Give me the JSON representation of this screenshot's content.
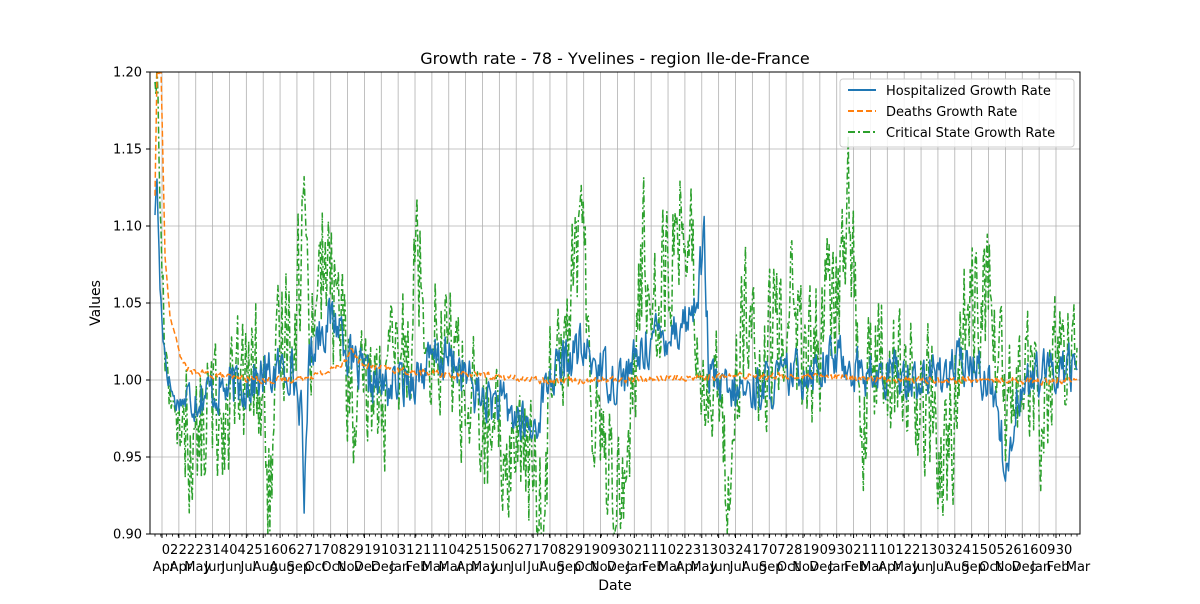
{
  "chart_data": {
    "type": "line",
    "title": "Growth rate - 78 - Yvelines - region Ile-de-France",
    "xlabel": "Date",
    "ylabel": "Values",
    "ylim": [
      0.9,
      1.2
    ],
    "yticks": [
      "0.90",
      "0.95",
      "1.00",
      "1.05",
      "1.10",
      "1.15",
      "1.20"
    ],
    "xticks": [
      {
        "day": "02",
        "month": "Apr"
      },
      {
        "day": "22",
        "month": "Apr"
      },
      {
        "day": "23",
        "month": "May"
      },
      {
        "day": "14",
        "month": "Jun"
      },
      {
        "day": "04",
        "month": "Jun"
      },
      {
        "day": "25",
        "month": "Jul"
      },
      {
        "day": "16",
        "month": "Aug"
      },
      {
        "day": "06",
        "month": "Aug"
      },
      {
        "day": "27",
        "month": "Sep"
      },
      {
        "day": "17",
        "month": "Oct"
      },
      {
        "day": "08",
        "month": "Oct"
      },
      {
        "day": "29",
        "month": "Nov"
      },
      {
        "day": "19",
        "month": "Dec"
      },
      {
        "day": "10",
        "month": "Dec"
      },
      {
        "day": "31",
        "month": "Jan"
      },
      {
        "day": "21",
        "month": "Feb"
      },
      {
        "day": "11",
        "month": "Mar"
      },
      {
        "day": "04",
        "month": "Mar"
      },
      {
        "day": "25",
        "month": "Apr"
      },
      {
        "day": "15",
        "month": "May"
      },
      {
        "day": "06",
        "month": "Jun"
      },
      {
        "day": "27",
        "month": "Jul"
      },
      {
        "day": "17",
        "month": "Jul"
      },
      {
        "day": "08",
        "month": "Aug"
      },
      {
        "day": "29",
        "month": "Sep"
      },
      {
        "day": "19",
        "month": "Oct"
      },
      {
        "day": "09",
        "month": "Nov"
      },
      {
        "day": "30",
        "month": "Dec"
      },
      {
        "day": "21",
        "month": "Jan"
      },
      {
        "day": "11",
        "month": "Feb"
      },
      {
        "day": "02",
        "month": "Mar"
      },
      {
        "day": "23",
        "month": "Apr"
      },
      {
        "day": "13",
        "month": "May"
      },
      {
        "day": "03",
        "month": "Jun"
      },
      {
        "day": "24",
        "month": "Jul"
      },
      {
        "day": "17",
        "month": "Aug"
      },
      {
        "day": "07",
        "month": "Sep"
      },
      {
        "day": "28",
        "month": "Oct"
      },
      {
        "day": "19",
        "month": "Nov"
      },
      {
        "day": "09",
        "month": "Dec"
      },
      {
        "day": "30",
        "month": "Jan"
      },
      {
        "day": "21",
        "month": "Feb"
      },
      {
        "day": "11",
        "month": "Mar"
      },
      {
        "day": "01",
        "month": "Apr"
      },
      {
        "day": "22",
        "month": "May"
      },
      {
        "day": "13",
        "month": "Jun"
      },
      {
        "day": "03",
        "month": "Jul"
      },
      {
        "day": "24",
        "month": "Aug"
      },
      {
        "day": "15",
        "month": "Sep"
      },
      {
        "day": "05",
        "month": "Oct"
      },
      {
        "day": "26",
        "month": "Nov"
      },
      {
        "day": "16",
        "month": "Dec"
      },
      {
        "day": "09",
        "month": "Jan"
      },
      {
        "day": "30",
        "month": "Feb"
      }
    ],
    "xticks_trailing": "Mar",
    "legend_position": "top-right",
    "grid": true,
    "series": [
      {
        "name": "Hospitalized Growth Rate",
        "color": "#1f77b4",
        "style": "solid",
        "anchors": [
          [
            0,
            1.11
          ],
          [
            2,
            1.13
          ],
          [
            5,
            1.06
          ],
          [
            8,
            1.03
          ],
          [
            12,
            1.005
          ],
          [
            20,
            0.985
          ],
          [
            40,
            0.99
          ],
          [
            60,
            0.993
          ],
          [
            80,
            0.995
          ],
          [
            100,
            1.0
          ],
          [
            120,
            1.005
          ],
          [
            135,
            1.01
          ],
          [
            145,
            0.98
          ],
          [
            148,
            0.915
          ],
          [
            152,
            1.01
          ],
          [
            160,
            1.03
          ],
          [
            175,
            1.04
          ],
          [
            185,
            1.035
          ],
          [
            195,
            1.01
          ],
          [
            210,
            1.0
          ],
          [
            230,
            0.995
          ],
          [
            250,
            1.0
          ],
          [
            265,
            1.005
          ],
          [
            280,
            1.015
          ],
          [
            300,
            1.01
          ],
          [
            320,
            0.99
          ],
          [
            340,
            0.985
          ],
          [
            360,
            0.975
          ],
          [
            375,
            0.965
          ],
          [
            390,
            1.0
          ],
          [
            405,
            1.01
          ],
          [
            420,
            1.02
          ],
          [
            440,
            1.01
          ],
          [
            455,
            1.0
          ],
          [
            470,
            1.005
          ],
          [
            490,
            1.025
          ],
          [
            505,
            1.03
          ],
          [
            520,
            1.035
          ],
          [
            535,
            1.045
          ],
          [
            545,
            1.09
          ],
          [
            550,
            1.0
          ],
          [
            570,
            0.99
          ],
          [
            600,
            0.995
          ],
          [
            620,
            1.0
          ],
          [
            640,
            1.005
          ],
          [
            660,
            1.01
          ],
          [
            680,
            1.015
          ],
          [
            700,
            1.005
          ],
          [
            720,
            1.0
          ],
          [
            740,
            1.005
          ],
          [
            760,
            1.0
          ],
          [
            780,
            1.005
          ],
          [
            800,
            1.01
          ],
          [
            820,
            1.005
          ],
          [
            835,
            0.99
          ],
          [
            845,
            0.935
          ],
          [
            855,
            0.99
          ],
          [
            870,
            1.0
          ],
          [
            890,
            1.005
          ],
          [
            905,
            1.01
          ],
          [
            915,
            1.005
          ]
        ],
        "noise": 0.014
      },
      {
        "name": "Deaths Growth Rate",
        "color": "#ff7f0e",
        "style": "dashed",
        "anchors": [
          [
            0,
            1.12
          ],
          [
            2,
            1.2
          ],
          [
            6,
            1.2
          ],
          [
            10,
            1.08
          ],
          [
            15,
            1.04
          ],
          [
            20,
            1.03
          ],
          [
            25,
            1.015
          ],
          [
            35,
            1.005
          ],
          [
            50,
            1.004
          ],
          [
            70,
            1.002
          ],
          [
            90,
            1.001
          ],
          [
            110,
            1.0
          ],
          [
            130,
            1.0
          ],
          [
            150,
            1.002
          ],
          [
            170,
            1.005
          ],
          [
            185,
            1.01
          ],
          [
            195,
            1.02
          ],
          [
            205,
            1.01
          ],
          [
            220,
            1.008
          ],
          [
            240,
            1.006
          ],
          [
            260,
            1.005
          ],
          [
            280,
            1.004
          ],
          [
            300,
            1.003
          ],
          [
            320,
            1.004
          ],
          [
            340,
            1.002
          ],
          [
            360,
            1.001
          ],
          [
            380,
            1.0
          ],
          [
            400,
            1.0
          ],
          [
            450,
            1.0
          ],
          [
            500,
            1.001
          ],
          [
            550,
            1.002
          ],
          [
            600,
            1.003
          ],
          [
            650,
            1.002
          ],
          [
            700,
            1.001
          ],
          [
            750,
            1.0
          ],
          [
            800,
            1.0
          ],
          [
            850,
            1.0
          ],
          [
            880,
            0.999
          ],
          [
            900,
            1.0
          ],
          [
            915,
            1.0
          ]
        ],
        "noise": 0.002
      },
      {
        "name": "Critical State Growth Rate",
        "color": "#2ca02c",
        "style": "dashdot",
        "anchors": [
          [
            0,
            1.2
          ],
          [
            2,
            1.2
          ],
          [
            6,
            1.09
          ],
          [
            10,
            1.02
          ],
          [
            15,
            1.0
          ],
          [
            20,
            0.96
          ],
          [
            30,
            0.98
          ],
          [
            40,
            0.95
          ],
          [
            50,
            0.975
          ],
          [
            70,
            0.985
          ],
          [
            90,
            0.99
          ],
          [
            100,
            1.01
          ],
          [
            110,
            0.96
          ],
          [
            115,
            0.92
          ],
          [
            125,
            1.03
          ],
          [
            140,
            1.05
          ],
          [
            148,
            1.11
          ],
          [
            155,
            1.04
          ],
          [
            165,
            1.08
          ],
          [
            175,
            1.06
          ],
          [
            185,
            1.04
          ],
          [
            200,
            0.96
          ],
          [
            215,
            1.0
          ],
          [
            230,
            0.99
          ],
          [
            250,
            1.02
          ],
          [
            260,
            1.09
          ],
          [
            270,
            1.04
          ],
          [
            285,
            1.03
          ],
          [
            300,
            1.01
          ],
          [
            320,
            0.97
          ],
          [
            340,
            0.95
          ],
          [
            360,
            0.96
          ],
          [
            375,
            0.94
          ],
          [
            385,
            0.905
          ],
          [
            395,
            1.05
          ],
          [
            410,
            1.03
          ],
          [
            420,
            1.1
          ],
          [
            435,
            1.0
          ],
          [
            450,
            0.95
          ],
          [
            465,
            0.93
          ],
          [
            475,
            1.0
          ],
          [
            485,
            1.08
          ],
          [
            500,
            1.06
          ],
          [
            515,
            1.08
          ],
          [
            525,
            1.12
          ],
          [
            540,
            1.02
          ],
          [
            555,
            0.99
          ],
          [
            570,
            0.95
          ],
          [
            585,
            1.05
          ],
          [
            600,
            0.98
          ],
          [
            615,
            1.03
          ],
          [
            630,
            1.06
          ],
          [
            645,
            1.0
          ],
          [
            660,
            1.03
          ],
          [
            675,
            1.05
          ],
          [
            690,
            1.12
          ],
          [
            700,
            0.96
          ],
          [
            710,
            1.0
          ],
          [
            725,
            1.01
          ],
          [
            740,
            1.0
          ],
          [
            755,
            0.99
          ],
          [
            770,
            0.98
          ],
          [
            785,
            0.93
          ],
          [
            800,
            1.02
          ],
          [
            815,
            1.06
          ],
          [
            830,
            1.05
          ],
          [
            845,
            0.97
          ],
          [
            860,
            1.0
          ],
          [
            880,
            0.98
          ],
          [
            895,
            1.01
          ],
          [
            915,
            1.0
          ]
        ],
        "noise": 0.045
      }
    ],
    "x_count": 916
  }
}
